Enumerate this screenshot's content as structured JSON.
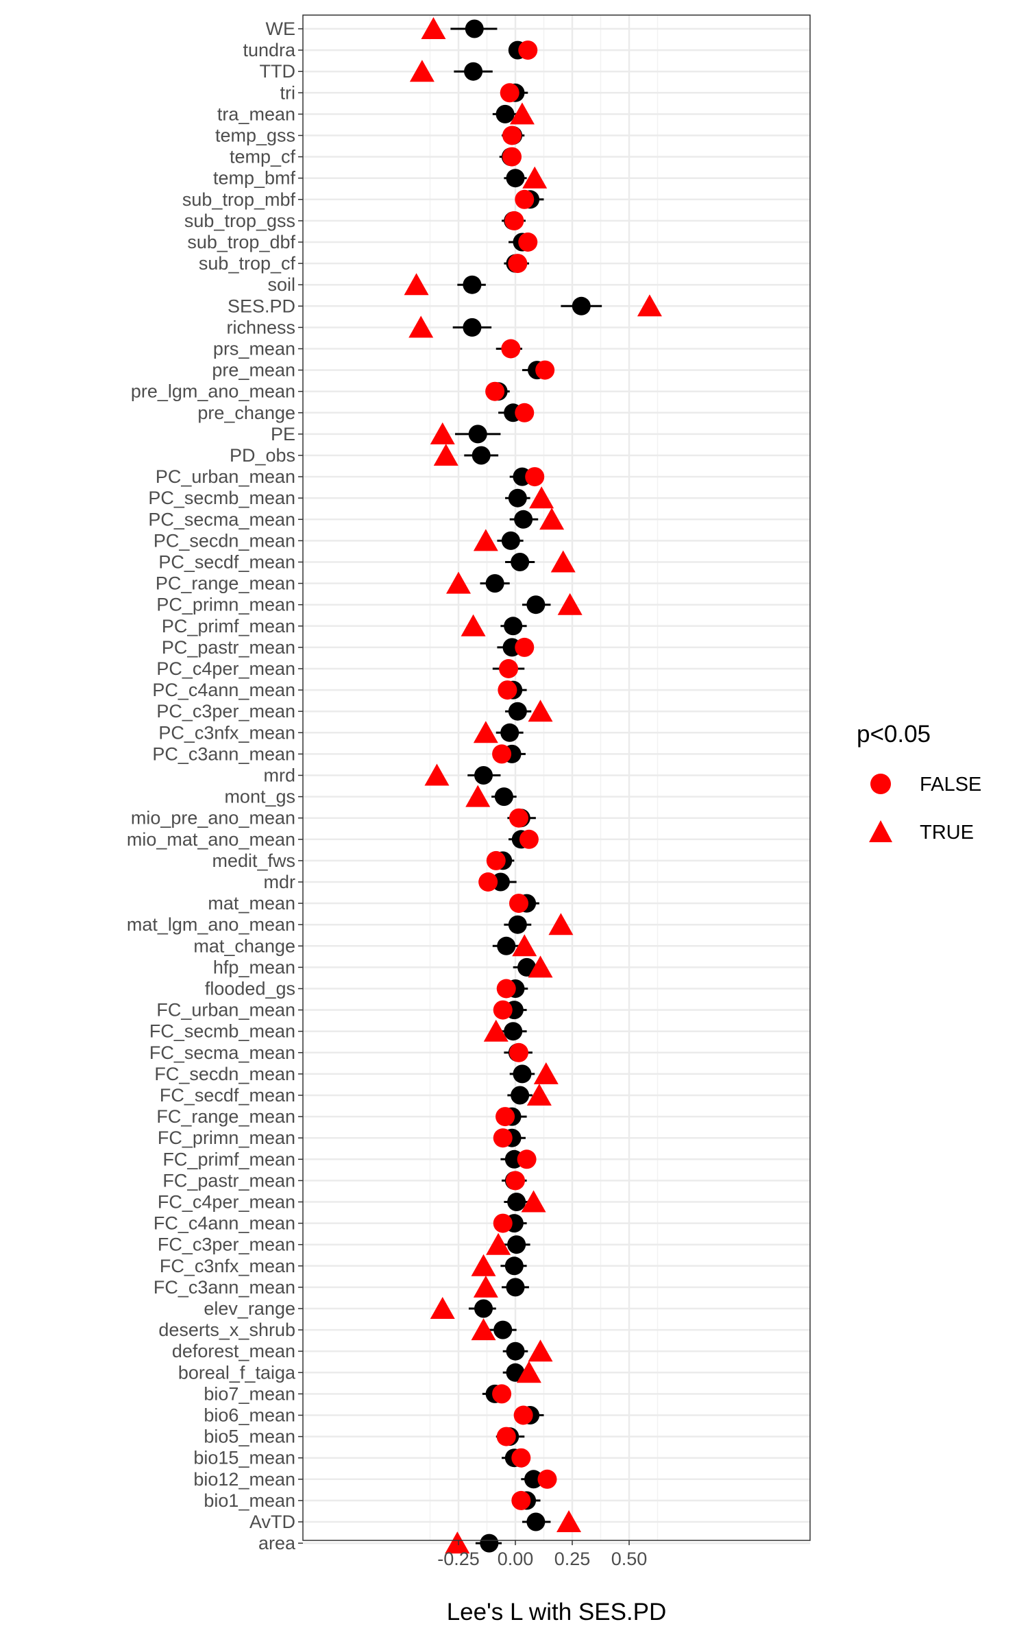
{
  "chart_data": {
    "type": "scatter",
    "xlabel": "Lee's L with SES.PD",
    "ylabel": "",
    "xlim": [
      -0.39,
      0.645
    ],
    "x_ticks": [
      -0.25,
      0.0,
      0.25,
      0.5
    ],
    "x_tick_labels": [
      "-0.25",
      "0.00",
      "0.25",
      "0.50"
    ],
    "grid": true,
    "categories": [
      "WE",
      "tundra",
      "TTD",
      "tri",
      "tra_mean",
      "temp_gss",
      "temp_cf",
      "temp_bmf",
      "sub_trop_mbf",
      "sub_trop_gss",
      "sub_trop_dbf",
      "sub_trop_cf",
      "soil",
      "SES.PD",
      "richness",
      "prs_mean",
      "pre_mean",
      "pre_lgm_ano_mean",
      "pre_change",
      "PE",
      "PD_obs",
      "PC_urban_mean",
      "PC_secmb_mean",
      "PC_secma_mean",
      "PC_secdn_mean",
      "PC_secdf_mean",
      "PC_range_mean",
      "PC_primn_mean",
      "PC_primf_mean",
      "PC_pastr_mean",
      "PC_c4per_mean",
      "PC_c4ann_mean",
      "PC_c3per_mean",
      "PC_c3nfx_mean",
      "PC_c3ann_mean",
      "mrd",
      "mont_gs",
      "mio_pre_ano_mean",
      "mio_mat_ano_mean",
      "medit_fws",
      "mdr",
      "mat_mean",
      "mat_lgm_ano_mean",
      "mat_change",
      "hfp_mean",
      "flooded_gs",
      "FC_urban_mean",
      "FC_secmb_mean",
      "FC_secma_mean",
      "FC_secdn_mean",
      "FC_secdf_mean",
      "FC_range_mean",
      "FC_primn_mean",
      "FC_primf_mean",
      "FC_pastr_mean",
      "FC_c4per_mean",
      "FC_c4ann_mean",
      "FC_c3per_mean",
      "FC_c3nfx_mean",
      "FC_c3ann_mean",
      "elev_range",
      "deserts_x_shrub",
      "deforest_mean",
      "boreal_f_taiga",
      "bio7_mean",
      "bio6_mean",
      "bio5_mean",
      "bio15_mean",
      "bio12_mean",
      "bio1_mean",
      "AvTD",
      "area"
    ],
    "estimate": [
      -0.18,
      0.01,
      -0.185,
      0.0,
      -0.045,
      -0.01,
      -0.02,
      0.0,
      0.065,
      -0.01,
      0.03,
      0.0,
      -0.19,
      0.29,
      -0.19,
      -0.02,
      0.095,
      -0.075,
      -0.01,
      -0.165,
      -0.15,
      0.03,
      0.01,
      0.035,
      -0.02,
      0.02,
      -0.09,
      0.09,
      -0.01,
      -0.015,
      -0.03,
      -0.01,
      0.01,
      -0.025,
      -0.015,
      -0.14,
      -0.05,
      0.025,
      0.025,
      -0.055,
      -0.065,
      0.05,
      0.01,
      -0.04,
      0.05,
      0.0,
      -0.005,
      -0.01,
      0.01,
      0.03,
      0.02,
      -0.015,
      -0.015,
      -0.005,
      -0.005,
      0.005,
      -0.005,
      0.005,
      -0.005,
      0.0,
      -0.14,
      -0.055,
      0.0,
      0.0,
      -0.09,
      0.065,
      -0.025,
      -0.005,
      0.08,
      0.05,
      0.09,
      -0.115
    ],
    "ci_low": [
      -0.285,
      -0.025,
      -0.27,
      -0.045,
      -0.1,
      -0.06,
      -0.07,
      -0.05,
      0.005,
      -0.06,
      -0.03,
      -0.05,
      -0.255,
      0.2,
      -0.275,
      -0.085,
      0.03,
      -0.13,
      -0.075,
      -0.265,
      -0.225,
      -0.025,
      -0.045,
      -0.025,
      -0.08,
      -0.045,
      -0.155,
      0.03,
      -0.065,
      -0.08,
      -0.1,
      -0.07,
      -0.045,
      -0.085,
      -0.075,
      -0.21,
      -0.105,
      -0.035,
      -0.03,
      -0.105,
      -0.125,
      -0.01,
      -0.05,
      -0.1,
      -0.01,
      -0.055,
      -0.06,
      -0.07,
      -0.05,
      -0.025,
      -0.035,
      -0.075,
      -0.07,
      -0.065,
      -0.06,
      -0.05,
      -0.065,
      -0.05,
      -0.065,
      -0.06,
      -0.205,
      -0.115,
      -0.055,
      -0.055,
      -0.145,
      0.005,
      -0.085,
      -0.06,
      0.025,
      0.0,
      0.03,
      -0.175
    ],
    "ci_high": [
      -0.08,
      0.05,
      -0.1,
      0.055,
      0.01,
      0.04,
      0.025,
      0.05,
      0.125,
      0.045,
      0.09,
      0.06,
      -0.13,
      0.38,
      -0.105,
      0.03,
      0.16,
      -0.025,
      0.06,
      -0.065,
      -0.075,
      0.085,
      0.065,
      0.1,
      0.035,
      0.085,
      -0.025,
      0.155,
      0.05,
      0.045,
      0.04,
      0.05,
      0.07,
      0.035,
      0.045,
      -0.065,
      0.005,
      0.09,
      0.08,
      -0.005,
      0.005,
      0.105,
      0.07,
      0.02,
      0.105,
      0.055,
      0.05,
      0.05,
      0.075,
      0.085,
      0.075,
      0.05,
      0.045,
      0.055,
      0.05,
      0.065,
      0.05,
      0.065,
      0.05,
      0.06,
      -0.085,
      0.005,
      0.055,
      0.055,
      -0.04,
      0.125,
      0.04,
      0.05,
      0.14,
      0.11,
      0.155,
      -0.06
    ],
    "series": [
      {
        "name": "FALSE",
        "shape": "circle",
        "color": "#ff0000",
        "x": [
          null,
          0.055,
          null,
          -0.025,
          null,
          -0.015,
          -0.015,
          null,
          0.04,
          -0.005,
          0.055,
          0.01,
          null,
          null,
          null,
          -0.02,
          0.13,
          -0.09,
          0.04,
          null,
          null,
          0.085,
          null,
          null,
          null,
          null,
          null,
          null,
          null,
          0.04,
          -0.03,
          -0.035,
          null,
          null,
          -0.06,
          null,
          null,
          0.015,
          0.06,
          -0.085,
          -0.12,
          0.015,
          null,
          null,
          null,
          -0.04,
          -0.055,
          null,
          0.015,
          null,
          null,
          -0.045,
          -0.055,
          0.05,
          0.0,
          null,
          -0.055,
          null,
          null,
          null,
          null,
          null,
          null,
          null,
          -0.06,
          0.035,
          -0.04,
          0.025,
          0.14,
          0.025,
          null,
          null
        ]
      },
      {
        "name": "TRUE",
        "shape": "triangle",
        "color": "#ff0000",
        "x": [
          -0.36,
          null,
          -0.41,
          null,
          0.03,
          null,
          null,
          0.085,
          null,
          null,
          null,
          null,
          -0.435,
          0.59,
          -0.415,
          null,
          null,
          null,
          null,
          -0.32,
          -0.305,
          null,
          0.115,
          0.16,
          -0.13,
          0.21,
          -0.25,
          0.24,
          -0.185,
          null,
          null,
          null,
          0.11,
          -0.13,
          null,
          -0.345,
          -0.165,
          null,
          null,
          null,
          null,
          null,
          0.2,
          0.04,
          0.11,
          null,
          null,
          -0.085,
          null,
          0.135,
          0.105,
          null,
          null,
          null,
          null,
          0.08,
          null,
          -0.075,
          -0.14,
          -0.13,
          -0.32,
          -0.14,
          0.11,
          0.06,
          null,
          null,
          null,
          null,
          null,
          null,
          0.235,
          -0.255
        ]
      }
    ],
    "legend": {
      "title": "p<0.05",
      "position": "right",
      "entries": [
        {
          "label": "FALSE",
          "shape": "circle"
        },
        {
          "label": "TRUE",
          "shape": "triangle"
        }
      ]
    }
  }
}
